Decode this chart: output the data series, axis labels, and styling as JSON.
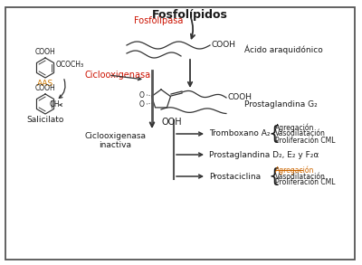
{
  "text_color": "#1a1a1a",
  "red_color": "#cc1100",
  "orange_color": "#b85c00",
  "dark_color": "#333333",
  "fig_width": 4.0,
  "fig_height": 2.93,
  "labels": {
    "fosfolipidos": "Fosfolípidos",
    "fosfolipasa": "Fosfolipasa",
    "acido_araquidonico": "Ácido araquidónico",
    "ciclooxigenasa": "Ciclooxigenasa",
    "prostaglandina_g2": "Prostaglandina G₂",
    "aas": "AAS",
    "salicilato": "Salicilato",
    "ciclooxigenasa_inactiva": "Ciclooxigenasa\ninactiva",
    "tromboxano": "Tromboxano A₂",
    "prostaglandina_def": "Prostaglandina D₂, E₂ y F₂α",
    "prostaciclina": "Prostaciclina",
    "ag1_1": "Agregación",
    "ag1_2": "Vasodilatación",
    "ag1_3": "Proliferación CML",
    "ag2_1": "Agregación",
    "ag2_2": "Vasodilatación",
    "ag2_3": "Proliferación CML"
  }
}
